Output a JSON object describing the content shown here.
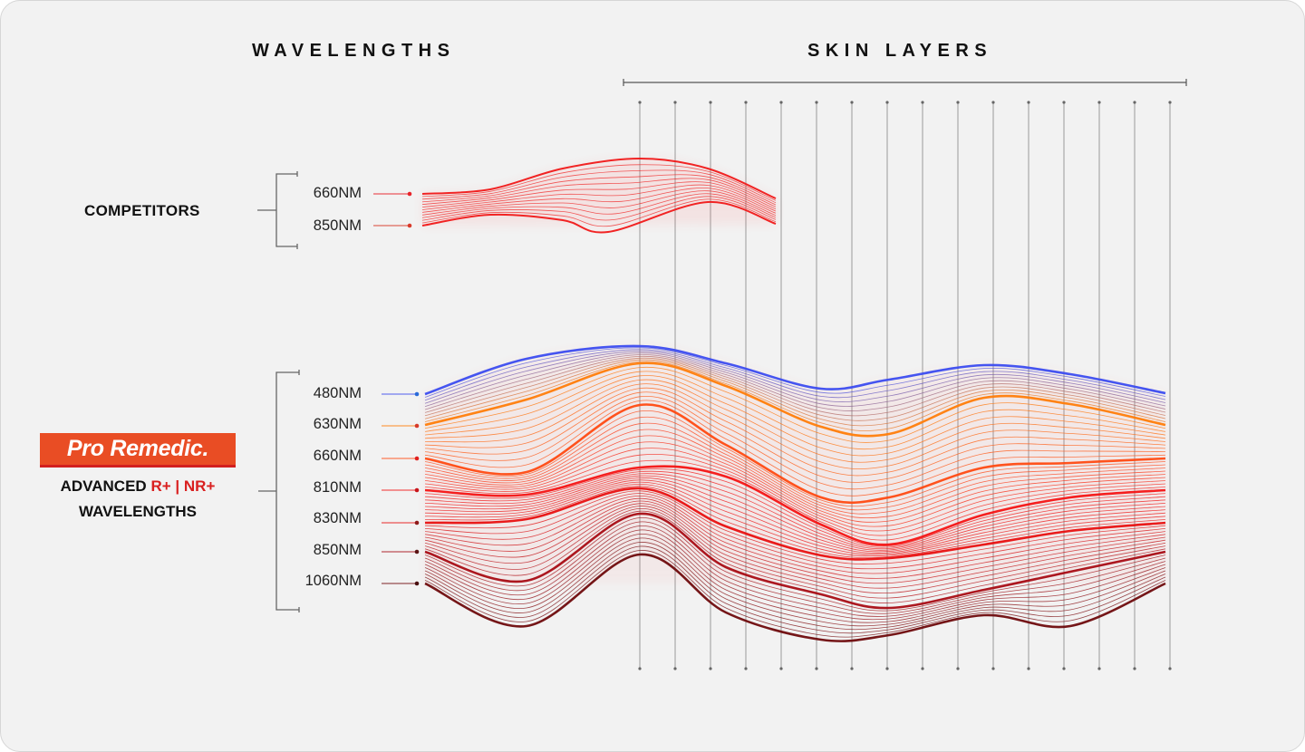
{
  "headings": {
    "wavelengths": "WAVELENGTHS",
    "skin_layers": "SKIN LAYERS"
  },
  "competitors": {
    "label": "COMPETITORS",
    "wavelengths": [
      {
        "label": "660NM",
        "color": "#e8232a"
      },
      {
        "label": "850NM",
        "color": "#d93a2a"
      }
    ],
    "wave_color": "#f01818"
  },
  "pro_remedic": {
    "brand": "Pro Remedic.",
    "brand_color": "#e94d24",
    "line1_prefix": "ADVANCED",
    "line1_r": "R+",
    "line1_sep": "|",
    "line1_nr": "NR+",
    "line2": "WAVELENGTHS",
    "wavelengths": [
      {
        "label": "480NM",
        "color": "#3b4cf0",
        "dot": "#2a6ad8"
      },
      {
        "label": "630NM",
        "color": "#ff7d0a",
        "dot": "#d63a2a"
      },
      {
        "label": "660NM",
        "color": "#ff4a12",
        "dot": "#e0201e"
      },
      {
        "label": "810NM",
        "color": "#f41414",
        "dot": "#c8141a"
      },
      {
        "label": "830NM",
        "color": "#e81010",
        "dot": "#8e1a1a"
      },
      {
        "label": "850NM",
        "color": "#a80c14",
        "dot": "#5a1414"
      },
      {
        "label": "1060NM",
        "color": "#6e0a0c",
        "dot": "#4a1010"
      }
    ]
  },
  "skin_layers": {
    "count": 16
  }
}
